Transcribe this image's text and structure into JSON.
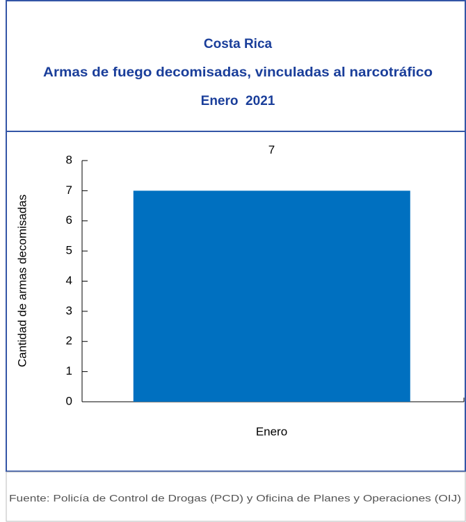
{
  "chart_data": {
    "type": "bar",
    "title": "Costa Rica",
    "subtitle": "Armas de fuego decomisadas, vinculadas al narcotráfico",
    "period": "Enero  2021",
    "y_label": "Cantidad de armas decomisadas",
    "categories": [
      "Enero"
    ],
    "values": [
      7
    ],
    "color": "#0070c0",
    "ylim": [
      0,
      8
    ],
    "yticks": [
      0,
      1,
      2,
      3,
      4,
      5,
      6,
      7,
      8
    ],
    "source": "Fuente: Policía de Control de Drogas (PCD) y Oficina de Planes y Operaciones (OIJ)"
  }
}
